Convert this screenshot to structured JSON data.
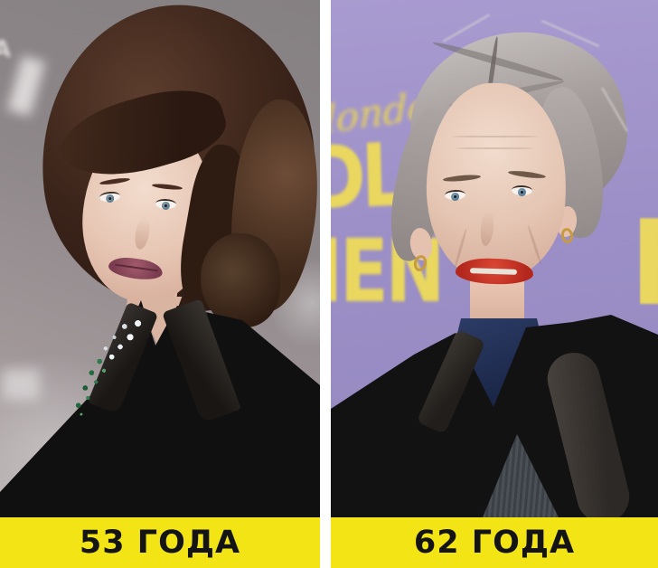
{
  "left_photo": {
    "caption": "53 ГОДА",
    "backdrop_logo_letter": "A"
  },
  "right_photo": {
    "caption": "62 ГОДА",
    "poster": {
      "script_word": "london",
      "letters_row1": "DL",
      "letters_row2": "IEN",
      "edge_letter": "F"
    }
  },
  "colors": {
    "caption_background": "#F3E515",
    "caption_text": "#141414",
    "divider": "#FFFFFF",
    "left_backdrop_gray": "#8E8789",
    "right_backdrop_purple": "#9C8FC7",
    "poster_yellow": "#E9D75F",
    "lipstick_left": "#7C3C50",
    "lipstick_right": "#C53222"
  }
}
